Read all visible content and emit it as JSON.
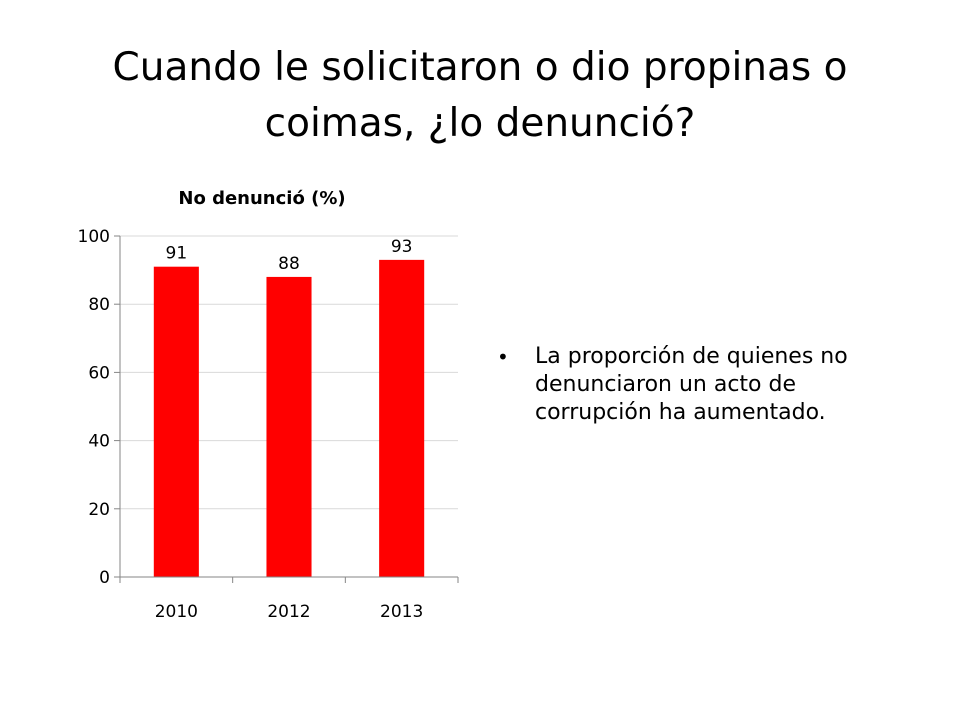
{
  "slide": {
    "title_line1": "Cuando le solicitaron o dio propinas o",
    "title_line2": "coimas, ¿lo denunció?",
    "bullets": [
      "La proporción de quienes no denunciaron un acto de corrupción ha aumentado."
    ]
  },
  "chart_data": {
    "type": "bar",
    "title": "No denunció (%)",
    "categories": [
      "2010",
      "2012",
      "2013"
    ],
    "values": [
      91,
      88,
      93
    ],
    "data_labels": [
      "91",
      "88",
      "93"
    ],
    "ylim": [
      0,
      100
    ],
    "yticks": [
      0,
      20,
      40,
      60,
      80,
      100
    ],
    "grid": true,
    "bar_color": "#FF0000",
    "grid_color": "#D9D9D9"
  }
}
